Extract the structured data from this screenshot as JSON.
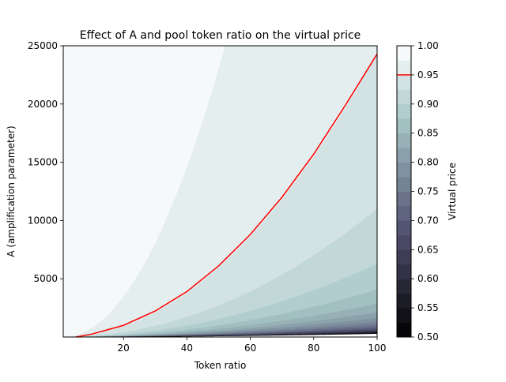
{
  "chart_data": {
    "type": "heatmap",
    "subtype": "filled-contour",
    "title": "Effect of A and pool token ratio on the virtual price",
    "xlabel": "Token ratio",
    "ylabel": "A (amplification parameter)",
    "xlim": [
      1,
      100
    ],
    "ylim": [
      0,
      25000
    ],
    "xticks": [
      20,
      40,
      60,
      80,
      100
    ],
    "yticks": [
      5000,
      10000,
      15000,
      20000,
      25000
    ],
    "colorbar": {
      "label": "Virtual price",
      "range": [
        0.5,
        1.0
      ],
      "levels": [
        0.5,
        0.525,
        0.55,
        0.575,
        0.6,
        0.625,
        0.65,
        0.675,
        0.7,
        0.725,
        0.75,
        0.775,
        0.8,
        0.825,
        0.85,
        0.875,
        0.9,
        0.925,
        0.95,
        0.975,
        1.0
      ],
      "ticks": [
        "0.50",
        "0.55",
        "0.60",
        "0.65",
        "0.70",
        "0.75",
        "0.80",
        "0.85",
        "0.90",
        "0.95",
        "1.00"
      ],
      "colormap": "bone",
      "highlight_level": 0.95,
      "highlight_color": "#ff0000"
    },
    "contour_line": {
      "level": 0.95,
      "color": "#ff0000",
      "x": [
        5,
        10,
        20,
        30,
        40,
        50,
        60,
        70,
        80,
        90,
        100
      ],
      "y": [
        0,
        250,
        1000,
        2230,
        3900,
        6100,
        8800,
        12000,
        15700,
        19900,
        24300
      ]
    }
  }
}
